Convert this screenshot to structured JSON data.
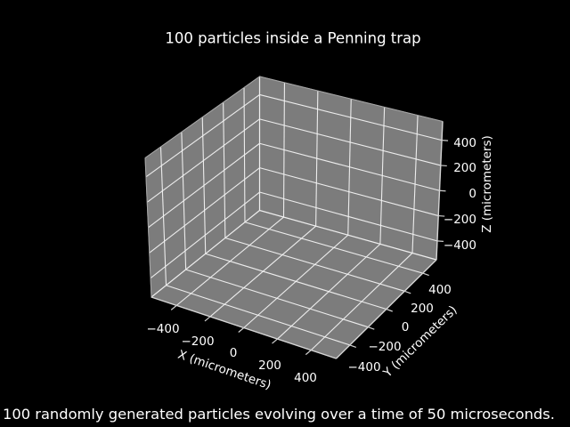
{
  "figure": {
    "caption": "100 randomly generated particles evolving over a time of 50 microseconds."
  },
  "chart_data": {
    "type": "scatter",
    "projection": "3d",
    "title": "100 particles inside a Penning trap",
    "xlabel": "X (micrometers)",
    "ylabel": "Y (micrometers)",
    "zlabel": "Z (micrometers)",
    "xticks": [
      -400,
      -200,
      0,
      200,
      400
    ],
    "yticks": [
      -400,
      -200,
      0,
      200,
      400
    ],
    "zticks": [
      -400,
      -200,
      0,
      200,
      400
    ],
    "xtick_labels": [
      "−400",
      "−200",
      "0",
      "200",
      "400"
    ],
    "ytick_labels": [
      "−400",
      "−200",
      "0",
      "200",
      "400"
    ],
    "ztick_labels": [
      "−400",
      "−200",
      "0",
      "200",
      "400"
    ],
    "xlim": [
      -550,
      550
    ],
    "ylim": [
      -550,
      550
    ],
    "zlim": [
      -550,
      550
    ],
    "grid": true,
    "legend": false,
    "points": []
  },
  "colors": {
    "background": "#000000",
    "text": "#ffffff",
    "pane": "#7c7c7c",
    "grid_line": "#f2f2f2",
    "inner_edge": "#eeeeee",
    "outer_edge": "#a8a8a8",
    "axis_line": "#d4d4d4",
    "tick_mark": "#cfcfcf"
  }
}
